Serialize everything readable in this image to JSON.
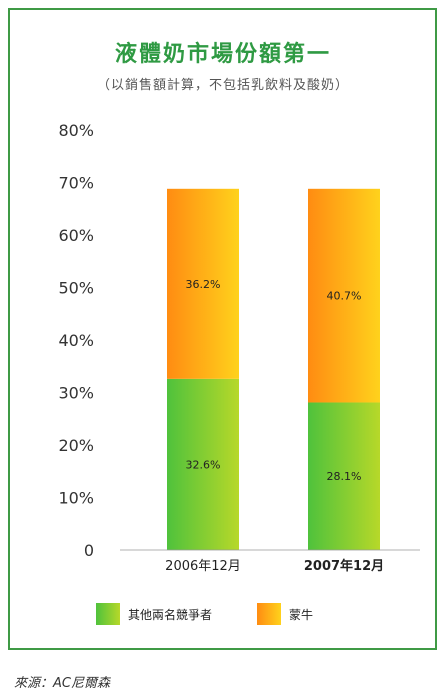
{
  "chart_data": {
    "type": "bar",
    "stacked": true,
    "title": "液體奶市場份額第一",
    "subtitle": "（以銷售額計算，不包括乳飲料及酸奶）",
    "categories": [
      "2006年12月",
      "2007年12月"
    ],
    "category_bold": [
      false,
      true
    ],
    "series": [
      {
        "name": "其他兩名競爭者",
        "values": [
          32.6,
          28.1
        ],
        "labels": [
          "32.6%",
          "28.1%"
        ],
        "color_from": "#4fc23c",
        "color_to": "#b7d829"
      },
      {
        "name": "蒙牛",
        "values": [
          36.2,
          40.7
        ],
        "labels": [
          "36.2%",
          "40.7%"
        ],
        "color_from": "#ff8c12",
        "color_to": "#ffd21c"
      }
    ],
    "ylim": [
      0,
      80
    ],
    "yticks": [
      "0",
      "10%",
      "20%",
      "30%",
      "40%",
      "50%",
      "60%",
      "70%",
      "80%"
    ],
    "grid": false,
    "legend_position": "bottom"
  },
  "source": "來源：AC尼爾森",
  "colors": {
    "frame": "#3f9a45",
    "title": "#2f9a43"
  }
}
